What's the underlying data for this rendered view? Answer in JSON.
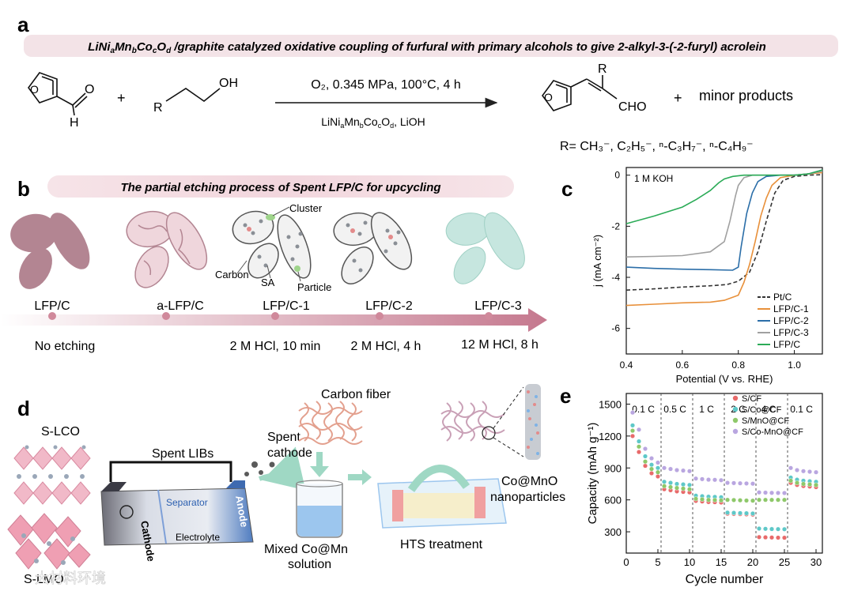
{
  "panel_labels": {
    "a": "a",
    "b": "b",
    "c": "c",
    "d": "d",
    "e": "e"
  },
  "panel_a": {
    "title_parts": [
      "LiNi",
      "a",
      "Mn",
      "b",
      "Co",
      "c",
      "O",
      "d",
      " /graphite catalyzed oxidative coupling of furfural with primary alcohols to give 2-alkyl-3-(-2-furyl) acrolein"
    ],
    "plus1": "+",
    "plus2": "+",
    "alcohol_r": "R",
    "alcohol_oh": "OH",
    "furfural_o_ring": "O",
    "furfural_o": "O",
    "furfural_h": "H",
    "cond_top": "O₂, 0.345 MPa, 100°C, 4 h",
    "cond_bottom": "LiNiₐMnᵦCo꜀Oᴅ, LiOH",
    "cond_bottom_parts": [
      "LiNi",
      "a",
      "Mn",
      "b",
      "Co",
      "c",
      "O",
      "d",
      ", LiOH"
    ],
    "product_r": "R",
    "product_cho": "CHO",
    "product_o_ring": "O",
    "minor": "minor products",
    "r_groups": "R= CH₃⁻, C₂H₅⁻, ⁿ-C₃H₇⁻, ⁿ-C₄H₉⁻"
  },
  "panel_b": {
    "title": "The partial etching process of Spent LFP/C for upcycling",
    "stages": [
      "LFP/C",
      "a-LFP/C",
      "LFP/C-1",
      "LFP/C-2",
      "LFP/C-3"
    ],
    "conditions": [
      "No etching",
      "",
      "2 M HCl, 10 min",
      "2 M HCl, 4 h",
      "12 M HCl, 8 h"
    ],
    "callouts": {
      "cluster": "Cluster",
      "carbon": "Carbon",
      "sa": "SA",
      "particle": "Particle"
    },
    "colors": {
      "lfp": "#b38592",
      "alfp": "#efd6dc",
      "lfp3": "#c6e6df"
    }
  },
  "panel_d": {
    "slco": "S-LCO",
    "slmo": "S-LMO",
    "spent_libs": "Spent  LIBs",
    "cathode": "Cathode",
    "separator": "Separator",
    "anode": "Anode",
    "electrolyte": "Electrolyte",
    "spent_cathode": "Spent\ncathode",
    "carbon_fiber": "Carbon fiber",
    "mixed": "Mixed Co@Mn\nsolution",
    "hts": "HTS treatment",
    "coMno": "Co@MnO\nnanoparticles"
  },
  "watermark": "大材料环境",
  "chart_data": [
    {
      "type": "line",
      "panel": "c",
      "annotation": "1 M KOH",
      "xlabel": "Potential (V vs. RHE)",
      "ylabel": "j (mA cm⁻²)",
      "xlim": [
        0.4,
        1.1
      ],
      "ylim": [
        -7,
        0.3
      ],
      "xticks": [
        0.4,
        0.6,
        0.8,
        1.0
      ],
      "yticks": [
        0,
        -2,
        -4,
        -6
      ],
      "legend_position": "bottom-right",
      "series": [
        {
          "name": "Pt/C",
          "color": "#333333",
          "dashed": true,
          "x": [
            0.4,
            0.5,
            0.6,
            0.7,
            0.76,
            0.8,
            0.84,
            0.87,
            0.9,
            0.93,
            0.96,
            1.0,
            1.05,
            1.1
          ],
          "y": [
            -4.5,
            -4.45,
            -4.38,
            -4.33,
            -4.28,
            -4.15,
            -3.8,
            -3.0,
            -1.8,
            -0.7,
            -0.2,
            -0.05,
            0.0,
            0.02
          ]
        },
        {
          "name": "LFP/C-1",
          "color": "#e8903a",
          "dashed": false,
          "x": [
            0.4,
            0.5,
            0.6,
            0.7,
            0.75,
            0.8,
            0.82,
            0.84,
            0.86,
            0.88,
            0.9,
            0.92,
            0.95,
            1.0,
            1.05,
            1.1
          ],
          "y": [
            -5.1,
            -5.05,
            -5.0,
            -4.97,
            -4.9,
            -4.7,
            -4.2,
            -3.5,
            -2.6,
            -1.6,
            -0.9,
            -0.4,
            -0.1,
            0.0,
            0.05,
            0.1
          ]
        },
        {
          "name": "LFP/C-2",
          "color": "#2b6ea8",
          "dashed": false,
          "x": [
            0.4,
            0.5,
            0.6,
            0.7,
            0.78,
            0.8,
            0.81,
            0.83,
            0.85,
            0.87,
            0.9,
            0.95,
            1.0,
            1.05,
            1.1
          ],
          "y": [
            -3.6,
            -3.65,
            -3.68,
            -3.7,
            -3.72,
            -3.6,
            -2.8,
            -1.5,
            -0.7,
            -0.25,
            -0.05,
            0.0,
            0.0,
            0.05,
            0.2
          ]
        },
        {
          "name": "LFP/C-3",
          "color": "#a0a0a0",
          "dashed": false,
          "x": [
            0.4,
            0.5,
            0.6,
            0.7,
            0.75,
            0.77,
            0.79,
            0.8,
            0.82,
            0.85,
            0.9,
            1.0,
            1.05,
            1.1
          ],
          "y": [
            -3.2,
            -3.18,
            -3.15,
            -3.0,
            -2.6,
            -1.8,
            -0.8,
            -0.4,
            -0.1,
            0.0,
            0.0,
            0.0,
            0.05,
            0.15
          ]
        },
        {
          "name": "LFP/C",
          "color": "#2bab57",
          "dashed": false,
          "x": [
            0.4,
            0.5,
            0.6,
            0.65,
            0.7,
            0.73,
            0.75,
            0.78,
            0.82,
            0.9,
            1.0,
            1.05,
            1.1
          ],
          "y": [
            -1.9,
            -1.6,
            -1.25,
            -0.95,
            -0.6,
            -0.3,
            -0.15,
            -0.05,
            0.0,
            0.0,
            0.0,
            0.05,
            0.2
          ]
        }
      ]
    },
    {
      "type": "scatter",
      "panel": "e",
      "xlabel": "Cycle number",
      "ylabel": "Capacity (mAh g⁻¹)",
      "xlim": [
        0,
        31
      ],
      "ylim": [
        100,
        1600
      ],
      "xticks": [
        0,
        5,
        10,
        15,
        20,
        25,
        30
      ],
      "yticks": [
        300,
        600,
        900,
        1200,
        1500
      ],
      "rate_labels": [
        {
          "text": "0.1 C",
          "x": 2.7
        },
        {
          "text": "0.5 C",
          "x": 7.7
        },
        {
          "text": "1 C",
          "x": 12.7
        },
        {
          "text": "2 C",
          "x": 17.7
        },
        {
          "text": "4 C",
          "x": 22.5
        },
        {
          "text": "0.1 C",
          "x": 27.7
        }
      ],
      "dividers": [
        5.5,
        10.5,
        15.5,
        20.5,
        25.5
      ],
      "legend_position": "top-right",
      "series": [
        {
          "name": "S/CF",
          "color": "#e86a6a",
          "levels": [
            [
              1200,
              1050,
              920,
              850,
              820
            ],
            [
              700,
              690,
              680,
              675,
              670
            ],
            [
              590,
              585,
              580,
              578,
              575
            ],
            [
              470,
              468,
              466,
              464,
              462
            ],
            [
              250,
              248,
              246,
              245,
              244
            ],
            [
              760,
              740,
              730,
              725,
              720
            ]
          ]
        },
        {
          "name": "S/Co@CF",
          "color": "#5ec8c8",
          "levels": [
            [
              1300,
              1150,
              1010,
              930,
              900
            ],
            [
              770,
              760,
              750,
              745,
              740
            ],
            [
              640,
              635,
              630,
              628,
              625
            ],
            [
              480,
              478,
              476,
              474,
              472
            ],
            [
              330,
              328,
              326,
              325,
              324
            ],
            [
              810,
              790,
              780,
              775,
              770
            ]
          ]
        },
        {
          "name": "S/MnO@CF",
          "color": "#8ec86a",
          "levels": [
            [
              1250,
              1100,
              960,
              890,
              860
            ],
            [
              730,
              720,
              712,
              706,
              700
            ],
            [
              610,
              605,
              600,
              598,
              595
            ],
            [
              600,
              598,
              596,
              594,
              592
            ],
            [
              600,
              600,
              600,
              600,
              600
            ],
            [
              780,
              760,
              750,
              745,
              740
            ]
          ]
        },
        {
          "name": "S/Co-MnO@CF",
          "color": "#b9a6e0",
          "levels": [
            [
              1420,
              1260,
              1080,
              990,
              950
            ],
            [
              900,
              890,
              880,
              875,
              870
            ],
            [
              800,
              795,
              790,
              788,
              785
            ],
            [
              760,
              758,
              756,
              754,
              752
            ],
            [
              670,
              668,
              666,
              665,
              664
            ],
            [
              900,
              880,
              870,
              865,
              860
            ]
          ]
        }
      ]
    }
  ]
}
